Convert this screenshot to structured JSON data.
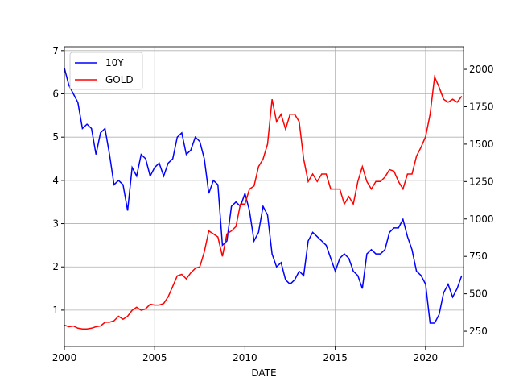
{
  "chart_data": {
    "type": "line",
    "xlabel": "DATE",
    "x": [
      2000,
      2000.25,
      2000.5,
      2000.75,
      2001,
      2001.25,
      2001.5,
      2001.75,
      2002,
      2002.25,
      2002.5,
      2002.75,
      2003,
      2003.25,
      2003.5,
      2003.75,
      2004,
      2004.25,
      2004.5,
      2004.75,
      2005,
      2005.25,
      2005.5,
      2005.75,
      2006,
      2006.25,
      2006.5,
      2006.75,
      2007,
      2007.25,
      2007.5,
      2007.75,
      2008,
      2008.25,
      2008.5,
      2008.75,
      2009,
      2009.25,
      2009.5,
      2009.75,
      2010,
      2010.25,
      2010.5,
      2010.75,
      2011,
      2011.25,
      2011.5,
      2011.75,
      2012,
      2012.25,
      2012.5,
      2012.75,
      2013,
      2013.25,
      2013.5,
      2013.75,
      2014,
      2014.25,
      2014.5,
      2014.75,
      2015,
      2015.25,
      2015.5,
      2015.75,
      2016,
      2016.25,
      2016.5,
      2016.75,
      2017,
      2017.25,
      2017.5,
      2017.75,
      2018,
      2018.25,
      2018.5,
      2018.75,
      2019,
      2019.25,
      2019.5,
      2019.75,
      2020,
      2020.25,
      2020.5,
      2020.75,
      2021,
      2021.25,
      2021.5,
      2021.75,
      2022
    ],
    "series": [
      {
        "name": "10Y",
        "color": "#0000ff",
        "axis": "y",
        "values": [
          6.6,
          6.2,
          6.0,
          5.8,
          5.2,
          5.3,
          5.2,
          4.6,
          5.1,
          5.2,
          4.6,
          3.9,
          4.0,
          3.9,
          3.3,
          4.3,
          4.1,
          4.6,
          4.5,
          4.1,
          4.3,
          4.4,
          4.1,
          4.4,
          4.5,
          5.0,
          5.1,
          4.6,
          4.7,
          5.0,
          4.9,
          4.5,
          3.7,
          4.0,
          3.9,
          2.5,
          2.6,
          3.4,
          3.5,
          3.4,
          3.7,
          3.3,
          2.6,
          2.8,
          3.4,
          3.2,
          2.3,
          2.0,
          2.1,
          1.7,
          1.6,
          1.7,
          1.9,
          1.8,
          2.6,
          2.8,
          2.7,
          2.6,
          2.5,
          2.2,
          1.9,
          2.2,
          2.3,
          2.2,
          1.9,
          1.8,
          1.5,
          2.3,
          2.4,
          2.3,
          2.3,
          2.4,
          2.8,
          2.9,
          2.9,
          3.1,
          2.7,
          2.4,
          1.9,
          1.8,
          1.6,
          0.7,
          0.7,
          0.9,
          1.4,
          1.6,
          1.3,
          1.5,
          1.8
        ]
      },
      {
        "name": "GOLD",
        "color": "#ff0000",
        "axis": "y2",
        "values": [
          290,
          280,
          285,
          270,
          265,
          265,
          270,
          280,
          285,
          310,
          310,
          320,
          350,
          330,
          350,
          390,
          410,
          390,
          400,
          430,
          425,
          425,
          435,
          480,
          550,
          620,
          630,
          600,
          640,
          670,
          680,
          780,
          920,
          900,
          880,
          750,
          900,
          920,
          950,
          1100,
          1100,
          1200,
          1220,
          1350,
          1400,
          1500,
          1800,
          1650,
          1700,
          1600,
          1700,
          1700,
          1650,
          1400,
          1250,
          1300,
          1250,
          1300,
          1300,
          1200,
          1200,
          1200,
          1100,
          1150,
          1100,
          1250,
          1350,
          1250,
          1200,
          1250,
          1250,
          1280,
          1330,
          1320,
          1250,
          1200,
          1300,
          1300,
          1420,
          1480,
          1550,
          1700,
          1950,
          1880,
          1800,
          1780,
          1800,
          1780,
          1820
        ]
      }
    ],
    "xlim": [
      2000,
      2022.1
    ],
    "xticks": [
      2000,
      2005,
      2010,
      2015,
      2020
    ],
    "ylim": [
      0.16,
      7.09
    ],
    "yticks": [
      1,
      2,
      3,
      4,
      5,
      6,
      7
    ],
    "y2lim": [
      148,
      2151
    ],
    "y2ticks": [
      250,
      500,
      750,
      1000,
      1250,
      1500,
      1750,
      2000
    ],
    "grid": true,
    "legend": "upper left"
  }
}
